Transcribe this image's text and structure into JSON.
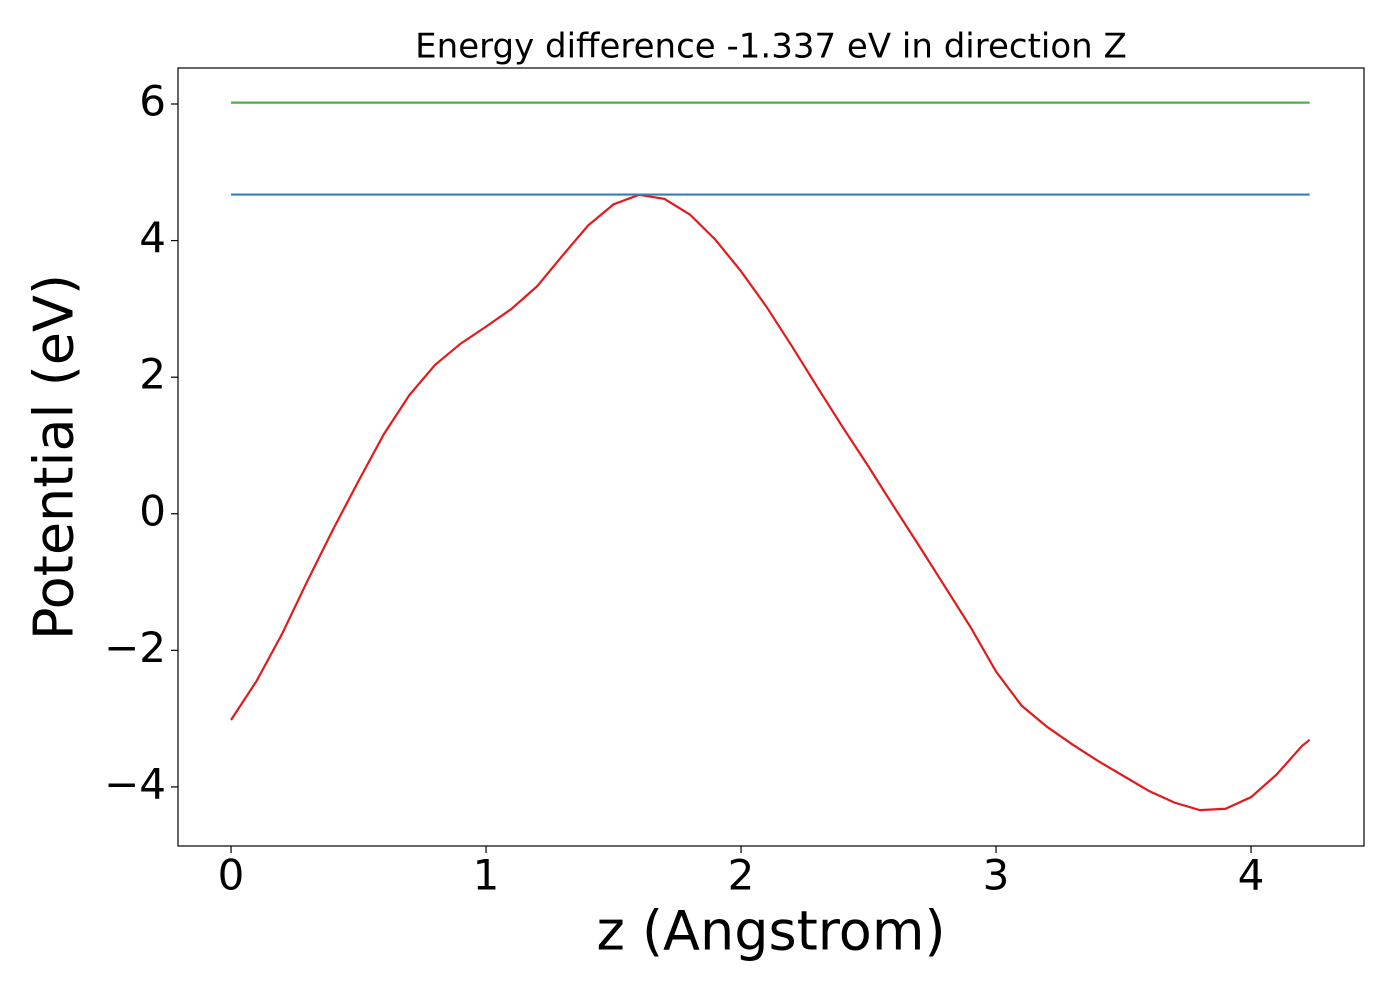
{
  "chart_data": {
    "type": "line",
    "title": "Energy difference -1.337 eV in direction Z",
    "xlabel": "z (Angstrom)",
    "ylabel": "Potential (eV)",
    "xlim": [
      -0.208,
      4.443
    ],
    "ylim": [
      -4.865,
      6.527
    ],
    "xticks": [
      0,
      1,
      2,
      3,
      4
    ],
    "yticks": [
      {
        "value": -4,
        "label": "−4"
      },
      {
        "value": -2,
        "label": "−2"
      },
      0,
      2,
      4,
      6
    ],
    "grid": false,
    "series": [
      {
        "color": "#e31a1c",
        "x": [
          0,
          0.1,
          0.2,
          0.3,
          0.4,
          0.5,
          0.6,
          0.7,
          0.8,
          0.9,
          1.0,
          1.1,
          1.2,
          1.3,
          1.4,
          1.5,
          1.6,
          1.7,
          1.8,
          1.9,
          2.0,
          2.1,
          2.2,
          2.3,
          2.4,
          2.5,
          2.6,
          2.7,
          2.8,
          2.9,
          3.0,
          3.1,
          3.2,
          3.3,
          3.4,
          3.5,
          3.6,
          3.7,
          3.8,
          3.9,
          4.0,
          4.1,
          4.2,
          4.23
        ],
        "values": [
          -3.02,
          -2.45,
          -1.76,
          -0.98,
          -0.23,
          0.48,
          1.17,
          1.74,
          2.18,
          2.49,
          2.74,
          3.0,
          3.33,
          3.78,
          4.22,
          4.53,
          4.67,
          4.61,
          4.38,
          4.01,
          3.55,
          3.03,
          2.45,
          1.85,
          1.26,
          0.69,
          0.1,
          -0.48,
          -1.07,
          -1.66,
          -2.31,
          -2.81,
          -3.12,
          -3.38,
          -3.62,
          -3.84,
          -4.06,
          -4.23,
          -4.34,
          -4.32,
          -4.15,
          -3.82,
          -3.4,
          -3.31
        ]
      },
      {
        "color": "#377eb8",
        "x": [
          0,
          4.23
        ],
        "values": [
          4.674,
          4.674
        ]
      },
      {
        "color": "#4daf4a",
        "x": [
          0,
          4.23
        ],
        "values": [
          6.02,
          6.02
        ]
      }
    ]
  }
}
